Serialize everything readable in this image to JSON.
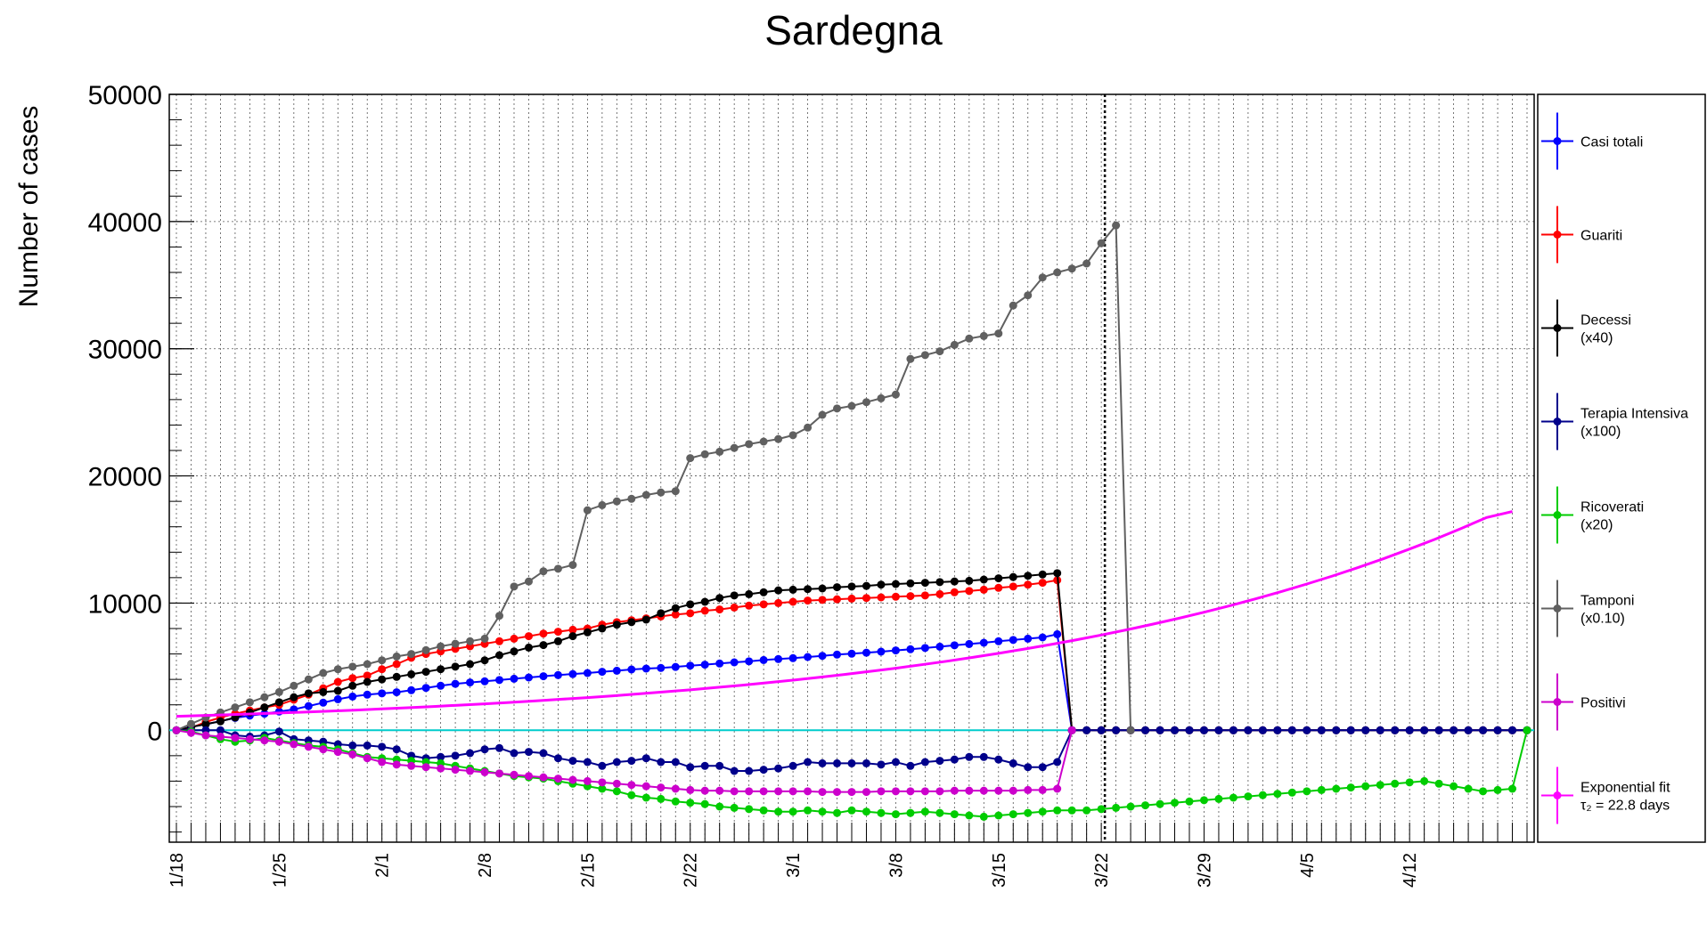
{
  "chart_data": {
    "type": "line",
    "title": "Sardegna",
    "ylabel": "Number of cases",
    "xlabel": "",
    "x_start": "1/18",
    "x_end": "4/19",
    "ylim": [
      -8800,
      50000
    ],
    "yticks": [
      0,
      10000,
      20000,
      30000,
      40000,
      50000
    ],
    "xticks": [
      "1/18",
      "1/25",
      "2/1",
      "2/8",
      "2/15",
      "2/22",
      "3/1",
      "3/8",
      "3/15",
      "3/22",
      "3/29",
      "4/5",
      "4/12"
    ],
    "grid": true,
    "legend_position": "right",
    "vertical_marker": "3/22",
    "zero_line_color": "#00cccc",
    "series": [
      {
        "name": "Casi totali",
        "color": "#0000ff",
        "values": [
          0,
          280,
          470,
          720,
          970,
          1150,
          1300,
          1470,
          1640,
          1900,
          2170,
          2440,
          2650,
          2800,
          2900,
          2990,
          3150,
          3330,
          3500,
          3650,
          3760,
          3850,
          3950,
          4050,
          4150,
          4250,
          4340,
          4420,
          4500,
          4600,
          4680,
          4780,
          4850,
          4900,
          4980,
          5080,
          5160,
          5250,
          5340,
          5420,
          5520,
          5600,
          5670,
          5760,
          5850,
          5950,
          6020,
          6100,
          6180,
          6280,
          6370,
          6470,
          6570,
          6680,
          6780,
          6880,
          7000,
          7100,
          7200,
          7300,
          7550,
          0,
          0,
          0,
          0,
          0,
          0,
          0,
          0,
          0,
          0,
          0,
          0,
          0,
          0,
          0,
          0,
          0,
          0,
          0,
          0,
          0,
          0,
          0,
          0,
          0,
          0,
          0,
          0,
          0,
          0,
          0,
          0
        ]
      },
      {
        "name": "Guariti",
        "color": "#ff0000",
        "values": [
          0,
          180,
          650,
          1000,
          1300,
          1550,
          1800,
          2000,
          2400,
          2800,
          3300,
          3800,
          4100,
          4300,
          4800,
          5200,
          5700,
          6000,
          6200,
          6400,
          6600,
          6800,
          7000,
          7200,
          7400,
          7600,
          7750,
          7900,
          8000,
          8300,
          8500,
          8650,
          8800,
          8950,
          9100,
          9200,
          9400,
          9500,
          9650,
          9800,
          9900,
          10000,
          10100,
          10200,
          10250,
          10300,
          10350,
          10400,
          10450,
          10500,
          10550,
          10600,
          10700,
          10850,
          10950,
          11050,
          11200,
          11300,
          11450,
          11600,
          11800,
          0,
          0,
          0,
          0,
          0,
          0,
          0,
          0,
          0,
          0,
          0,
          0,
          0,
          0,
          0,
          0,
          0,
          0,
          0,
          0,
          0,
          0,
          0,
          0,
          0,
          0,
          0,
          0,
          0,
          0,
          0,
          0
        ]
      },
      {
        "name": "Decessi",
        "note": "(x40)",
        "color": "#000000",
        "values": [
          0,
          250,
          480,
          700,
          1000,
          1400,
          1800,
          2200,
          2600,
          2900,
          3000,
          3100,
          3500,
          3800,
          4000,
          4200,
          4400,
          4600,
          4800,
          5000,
          5200,
          5500,
          5900,
          6200,
          6500,
          6700,
          7000,
          7400,
          7700,
          8000,
          8300,
          8500,
          8700,
          9200,
          9600,
          9900,
          10100,
          10400,
          10600,
          10700,
          10850,
          11000,
          11050,
          11100,
          11150,
          11250,
          11300,
          11350,
          11450,
          11500,
          11550,
          11600,
          11650,
          11700,
          11750,
          11850,
          11950,
          12050,
          12150,
          12250,
          12350,
          0,
          0,
          0,
          0,
          0,
          0,
          0,
          0,
          0,
          0,
          0,
          0,
          0,
          0,
          0,
          0,
          0,
          0,
          0,
          0,
          0,
          0,
          0,
          0,
          0,
          0,
          0,
          0,
          0,
          0,
          0,
          0
        ]
      },
      {
        "name": "Terapia Intensiva",
        "note": "(x100)",
        "color": "#00008b",
        "values": [
          0,
          0,
          0,
          0,
          -400,
          -500,
          -400,
          -100,
          -700,
          -800,
          -900,
          -1100,
          -1200,
          -1200,
          -1300,
          -1500,
          -2000,
          -2200,
          -2100,
          -2000,
          -1800,
          -1500,
          -1400,
          -1800,
          -1700,
          -1800,
          -2200,
          -2400,
          -2500,
          -2800,
          -2500,
          -2400,
          -2200,
          -2500,
          -2500,
          -2900,
          -2800,
          -2800,
          -3200,
          -3200,
          -3100,
          -3000,
          -2800,
          -2500,
          -2600,
          -2600,
          -2600,
          -2600,
          -2700,
          -2500,
          -2800,
          -2500,
          -2400,
          -2300,
          -2100,
          -2100,
          -2300,
          -2600,
          -2900,
          -2900,
          -2500,
          0,
          0,
          0,
          0,
          0,
          0,
          0,
          0,
          0,
          0,
          0,
          0,
          0,
          0,
          0,
          0,
          0,
          0,
          0,
          0,
          0,
          0,
          0,
          0,
          0,
          0,
          0,
          0,
          0,
          0,
          0,
          0
        ]
      },
      {
        "name": "Ricoverati",
        "note": "(x20)",
        "color": "#00cc00",
        "values": [
          0,
          -100,
          -400,
          -700,
          -900,
          -800,
          -600,
          -800,
          -1000,
          -1200,
          -1300,
          -1500,
          -1800,
          -2100,
          -2200,
          -2300,
          -2400,
          -2500,
          -2600,
          -2800,
          -3000,
          -3200,
          -3400,
          -3600,
          -3700,
          -3800,
          -4000,
          -4200,
          -4400,
          -4600,
          -4800,
          -5100,
          -5300,
          -5400,
          -5600,
          -5700,
          -5800,
          -6000,
          -6100,
          -6200,
          -6300,
          -6400,
          -6400,
          -6300,
          -6400,
          -6500,
          -6300,
          -6400,
          -6500,
          -6600,
          -6500,
          -6400,
          -6500,
          -6600,
          -6700,
          -6800,
          -6700,
          -6600,
          -6500,
          -6400,
          -6300,
          -6300,
          -6300,
          -6200,
          -6100,
          -6000,
          -5900,
          -5800,
          -5700,
          -5600,
          -5500,
          -5400,
          -5300,
          -5200,
          -5100,
          -5000,
          -4900,
          -4800,
          -4700,
          -4600,
          -4500,
          -4400,
          -4300,
          -4200,
          -4100,
          -4000,
          -4200,
          -4400,
          -4600,
          -4800,
          -4700,
          -4600,
          0
        ]
      },
      {
        "name": "Tamponi",
        "note": "(x0.10)",
        "color": "#606060",
        "values": [
          0,
          500,
          1000,
          1400,
          1800,
          2200,
          2600,
          3000,
          3500,
          4000,
          4500,
          4800,
          5000,
          5200,
          5500,
          5800,
          6000,
          6300,
          6600,
          6800,
          7000,
          7200,
          9000,
          11300,
          11700,
          12500,
          12700,
          13000,
          17300,
          17700,
          18000,
          18200,
          18500,
          18700,
          18800,
          21400,
          21700,
          21900,
          22200,
          22500,
          22700,
          22900,
          23200,
          23800,
          24800,
          25300,
          25500,
          25800,
          26100,
          26400,
          29200,
          29500,
          29800,
          30300,
          30800,
          31000,
          31200,
          33400,
          34200,
          35600,
          36000,
          36300,
          36700,
          38300,
          39700,
          0
        ]
      },
      {
        "name": "Positivi",
        "color": "#cc00cc",
        "values": [
          0,
          -200,
          -400,
          -500,
          -600,
          -700,
          -800,
          -900,
          -1100,
          -1300,
          -1500,
          -1700,
          -1900,
          -2200,
          -2500,
          -2700,
          -2800,
          -2900,
          -3000,
          -3100,
          -3200,
          -3300,
          -3400,
          -3500,
          -3600,
          -3700,
          -3800,
          -3900,
          -4000,
          -4100,
          -4200,
          -4300,
          -4400,
          -4500,
          -4600,
          -4700,
          -4750,
          -4750,
          -4800,
          -4800,
          -4800,
          -4800,
          -4800,
          -4800,
          -4850,
          -4850,
          -4850,
          -4850,
          -4800,
          -4800,
          -4800,
          -4800,
          -4800,
          -4750,
          -4750,
          -4750,
          -4750,
          -4750,
          -4700,
          -4700,
          -4600,
          0
        ]
      },
      {
        "name": "Exponential fit",
        "note": "τ₂ = 22.8 days",
        "color": "#ff00ff",
        "values": [
          1100,
          1160,
          1220,
          1290,
          1360,
          1430,
          1510,
          1590,
          1680,
          1770,
          1870,
          1970,
          2080,
          2190,
          2310,
          2440,
          2570,
          2710,
          2860,
          3020,
          3180,
          3360,
          3540,
          3740,
          3940,
          4160,
          4390,
          4630,
          4880,
          5150,
          5430,
          5730,
          6050,
          6380,
          6730,
          7100,
          7490,
          7900,
          8340,
          8800,
          9280,
          9790,
          10330,
          10900,
          11500,
          12130,
          12800,
          13500,
          14250,
          15030,
          15860,
          16730,
          17200
        ]
      }
    ]
  }
}
